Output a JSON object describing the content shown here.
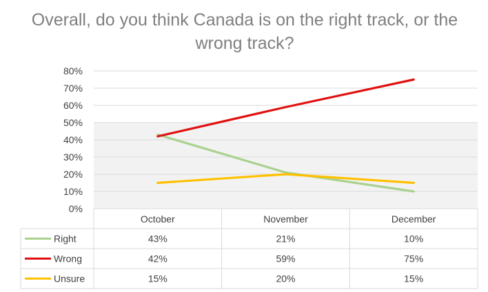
{
  "chart_data": {
    "type": "line",
    "title": "Overall, do you think Canada is on the right track, or the wrong track?",
    "categories": [
      "October",
      "November",
      "December"
    ],
    "series": [
      {
        "name": "Right",
        "values": [
          43,
          21,
          10
        ],
        "labels": [
          "43%",
          "21%",
          "10%"
        ],
        "color": "#a9d18e"
      },
      {
        "name": "Wrong",
        "values": [
          42,
          59,
          75
        ],
        "labels": [
          "42%",
          "59%",
          "75%"
        ],
        "color": "#e01010"
      },
      {
        "name": "Unsure",
        "values": [
          15,
          20,
          15
        ],
        "labels": [
          "15%",
          "20%",
          "15%"
        ],
        "color": "#ffc000"
      }
    ],
    "y_ticks": [
      "0%",
      "10%",
      "20%",
      "30%",
      "40%",
      "50%",
      "60%",
      "70%",
      "80%"
    ],
    "ylim": [
      0,
      80
    ],
    "grid": true,
    "legend": "data-table"
  }
}
